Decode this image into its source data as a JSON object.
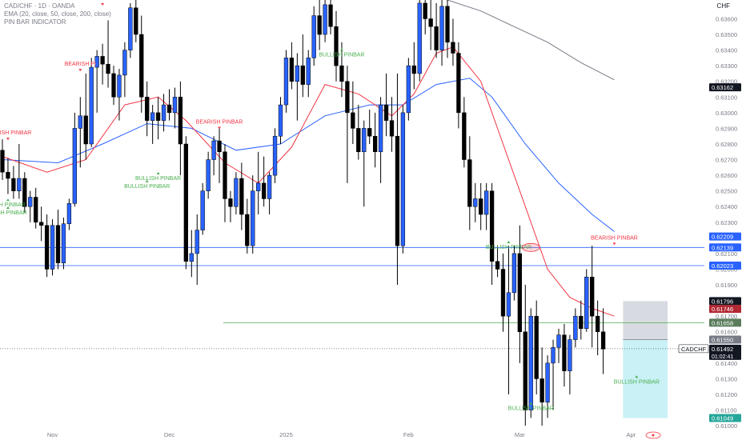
{
  "header": {
    "symbol_line": "CAD/CHF · 1D · OANDA",
    "ema_line": "EMA (20, close, 50, close, 200, close)",
    "indicator_line": "PIN BAR INDICATOR",
    "currency": "CHF"
  },
  "colors": {
    "up_body": "#2962ff",
    "down_body": "#000000",
    "wick": "#000000",
    "ema20": "#f23645",
    "ema50": "#2962ff",
    "ema200": "#787b86",
    "bullish_label": "#4caf50",
    "bearish_label": "#f23645",
    "hline_blue": "#2962ff",
    "hline_green": "#4caf50",
    "target_zone": "#b2ebf2",
    "stop_zone": "#d1d4dc",
    "last_price_bg": "#131722"
  },
  "chart_data": {
    "type": "candlestick",
    "symbol": "CAD/CHF",
    "timeframe": "1D",
    "broker": "OANDA",
    "ylim": [
      0.6097,
      0.6372
    ],
    "y_ticks": [
      "0.63600",
      "0.63500",
      "0.63400",
      "0.63300",
      "0.63200",
      "0.63100",
      "0.63000",
      "0.62900",
      "0.62800",
      "0.62700",
      "0.62600",
      "0.62500",
      "0.62400",
      "0.62300",
      "0.62200",
      "0.62100",
      "0.62000",
      "0.61900",
      "0.61800",
      "0.61700",
      "0.61600",
      "0.61500",
      "0.61400",
      "0.61300",
      "0.61200",
      "0.61100",
      "0.61000"
    ],
    "x_ticks": [
      {
        "label": "Nov",
        "index": 9
      },
      {
        "label": "Dec",
        "index": 30
      },
      {
        "label": "2025",
        "index": 51
      },
      {
        "label": "Feb",
        "index": 73
      },
      {
        "label": "Mar",
        "index": 93
      },
      {
        "label": "Apr",
        "index": 113
      }
    ],
    "candles": [
      [
        0.6276,
        0.6283,
        0.6257,
        0.6262
      ],
      [
        0.6262,
        0.6271,
        0.6248,
        0.6258
      ],
      [
        0.6258,
        0.6266,
        0.6245,
        0.625
      ],
      [
        0.625,
        0.628,
        0.6245,
        0.6258
      ],
      [
        0.6258,
        0.6262,
        0.6236,
        0.624
      ],
      [
        0.624,
        0.625,
        0.623,
        0.6246
      ],
      [
        0.6246,
        0.6252,
        0.6226,
        0.623
      ],
      [
        0.623,
        0.624,
        0.6218,
        0.6228
      ],
      [
        0.6228,
        0.6235,
        0.6195,
        0.62
      ],
      [
        0.62,
        0.6232,
        0.6196,
        0.6228
      ],
      [
        0.6228,
        0.6238,
        0.62,
        0.6204
      ],
      [
        0.6204,
        0.6233,
        0.62,
        0.6229
      ],
      [
        0.6229,
        0.6245,
        0.6225,
        0.6242
      ],
      [
        0.6242,
        0.63,
        0.624,
        0.629
      ],
      [
        0.629,
        0.631,
        0.6265,
        0.6298
      ],
      [
        0.6298,
        0.6325,
        0.627,
        0.628
      ],
      [
        0.628,
        0.6335,
        0.6278,
        0.6329
      ],
      [
        0.6329,
        0.634,
        0.63,
        0.6336
      ],
      [
        0.6336,
        0.6344,
        0.6318,
        0.6331
      ],
      [
        0.6331,
        0.6359,
        0.6316,
        0.6325
      ],
      [
        0.6325,
        0.633,
        0.6305,
        0.631
      ],
      [
        0.631,
        0.6328,
        0.6295,
        0.6324
      ],
      [
        0.6324,
        0.6345,
        0.631,
        0.634
      ],
      [
        0.634,
        0.637,
        0.6335,
        0.6367
      ],
      [
        0.6367,
        0.6375,
        0.6345,
        0.635
      ],
      [
        0.635,
        0.6362,
        0.63,
        0.631
      ],
      [
        0.631,
        0.632,
        0.6285,
        0.6295
      ],
      [
        0.6295,
        0.6305,
        0.628,
        0.63
      ],
      [
        0.63,
        0.631,
        0.6283,
        0.6295
      ],
      [
        0.6295,
        0.6312,
        0.6288,
        0.6305
      ],
      [
        0.6305,
        0.6315,
        0.6295,
        0.63
      ],
      [
        0.63,
        0.6316,
        0.629,
        0.631
      ],
      [
        0.631,
        0.632,
        0.626,
        0.628
      ],
      [
        0.628,
        0.6285,
        0.62,
        0.6205
      ],
      [
        0.6205,
        0.6225,
        0.6195,
        0.621
      ],
      [
        0.621,
        0.6235,
        0.619,
        0.6225
      ],
      [
        0.6225,
        0.6255,
        0.6222,
        0.625
      ],
      [
        0.625,
        0.6275,
        0.6245,
        0.627
      ],
      [
        0.627,
        0.6285,
        0.626,
        0.6282
      ],
      [
        0.6282,
        0.629,
        0.6255,
        0.6275
      ],
      [
        0.6275,
        0.628,
        0.623,
        0.6245
      ],
      [
        0.6245,
        0.625,
        0.623,
        0.624
      ],
      [
        0.624,
        0.6262,
        0.6235,
        0.6258
      ],
      [
        0.6258,
        0.6268,
        0.6225,
        0.6235
      ],
      [
        0.6235,
        0.6245,
        0.621,
        0.6215
      ],
      [
        0.6215,
        0.626,
        0.621,
        0.625
      ],
      [
        0.625,
        0.6275,
        0.6235,
        0.6255
      ],
      [
        0.6255,
        0.6272,
        0.624,
        0.6245
      ],
      [
        0.6245,
        0.6262,
        0.6235,
        0.626
      ],
      [
        0.626,
        0.629,
        0.6255,
        0.6285
      ],
      [
        0.6285,
        0.631,
        0.628,
        0.6305
      ],
      [
        0.6305,
        0.634,
        0.63,
        0.6335
      ],
      [
        0.6335,
        0.6345,
        0.6315,
        0.632
      ],
      [
        0.632,
        0.6338,
        0.6295,
        0.633
      ],
      [
        0.633,
        0.635,
        0.631,
        0.6318
      ],
      [
        0.6318,
        0.634,
        0.631,
        0.6335
      ],
      [
        0.6335,
        0.6368,
        0.633,
        0.6362
      ],
      [
        0.6362,
        0.6375,
        0.634,
        0.635
      ],
      [
        0.635,
        0.6372,
        0.6345,
        0.6369
      ],
      [
        0.6369,
        0.6375,
        0.635,
        0.6355
      ],
      [
        0.6355,
        0.6365,
        0.632,
        0.633
      ],
      [
        0.633,
        0.6345,
        0.631,
        0.632
      ],
      [
        0.632,
        0.633,
        0.6255,
        0.63
      ],
      [
        0.63,
        0.632,
        0.628,
        0.629
      ],
      [
        0.629,
        0.6305,
        0.627,
        0.6275
      ],
      [
        0.6275,
        0.6295,
        0.624,
        0.629
      ],
      [
        0.629,
        0.6302,
        0.628,
        0.6285
      ],
      [
        0.6285,
        0.63,
        0.6265,
        0.6275
      ],
      [
        0.6275,
        0.631,
        0.6255,
        0.6305
      ],
      [
        0.6305,
        0.6325,
        0.6285,
        0.6295
      ],
      [
        0.6295,
        0.631,
        0.6275,
        0.6285
      ],
      [
        0.6285,
        0.6325,
        0.619,
        0.6215
      ],
      [
        0.6215,
        0.6305,
        0.621,
        0.63
      ],
      [
        0.63,
        0.6335,
        0.6295,
        0.633
      ],
      [
        0.633,
        0.6345,
        0.6315,
        0.6325
      ],
      [
        0.6325,
        0.6375,
        0.632,
        0.637
      ],
      [
        0.637,
        0.6378,
        0.635,
        0.636
      ],
      [
        0.636,
        0.6372,
        0.634,
        0.6355
      ],
      [
        0.6355,
        0.637,
        0.6335,
        0.634
      ],
      [
        0.634,
        0.6375,
        0.633,
        0.6368
      ],
      [
        0.6368,
        0.6372,
        0.6335,
        0.6345
      ],
      [
        0.6345,
        0.636,
        0.633,
        0.6338
      ],
      [
        0.6338,
        0.6345,
        0.629,
        0.63
      ],
      [
        0.63,
        0.631,
        0.6265,
        0.627
      ],
      [
        0.627,
        0.6285,
        0.6225,
        0.624
      ],
      [
        0.624,
        0.6255,
        0.623,
        0.6245
      ],
      [
        0.6245,
        0.6255,
        0.6225,
        0.6235
      ],
      [
        0.6235,
        0.6255,
        0.6225,
        0.625
      ],
      [
        0.625,
        0.6255,
        0.619,
        0.6205
      ],
      [
        0.6205,
        0.6215,
        0.6195,
        0.62
      ],
      [
        0.62,
        0.621,
        0.616,
        0.617
      ],
      [
        0.617,
        0.6215,
        0.612,
        0.6185
      ],
      [
        0.6185,
        0.6215,
        0.618,
        0.621
      ],
      [
        0.621,
        0.6228,
        0.614,
        0.616
      ],
      [
        0.616,
        0.619,
        0.61,
        0.611
      ],
      [
        0.611,
        0.6175,
        0.6105,
        0.617
      ],
      [
        0.617,
        0.618,
        0.612,
        0.613
      ],
      [
        0.613,
        0.615,
        0.61,
        0.6115
      ],
      [
        0.6115,
        0.6145,
        0.6105,
        0.614
      ],
      [
        0.614,
        0.6155,
        0.611,
        0.615
      ],
      [
        0.615,
        0.6162,
        0.614,
        0.6158
      ],
      [
        0.6158,
        0.6165,
        0.6125,
        0.6135
      ],
      [
        0.6135,
        0.6158,
        0.612,
        0.6155
      ],
      [
        0.6155,
        0.6175,
        0.615,
        0.617
      ],
      [
        0.617,
        0.618,
        0.6155,
        0.6162
      ],
      [
        0.6162,
        0.62,
        0.616,
        0.6195
      ],
      [
        0.6195,
        0.6215,
        0.615,
        0.617
      ],
      [
        0.617,
        0.618,
        0.6145,
        0.616
      ],
      [
        0.616,
        0.6175,
        0.6133,
        0.6149
      ]
    ],
    "ema20": [
      [
        0,
        0.6272
      ],
      [
        8,
        0.6262
      ],
      [
        15,
        0.627
      ],
      [
        22,
        0.6305
      ],
      [
        28,
        0.631
      ],
      [
        33,
        0.6295
      ],
      [
        40,
        0.6268
      ],
      [
        46,
        0.6255
      ],
      [
        52,
        0.6278
      ],
      [
        58,
        0.6318
      ],
      [
        64,
        0.6312
      ],
      [
        70,
        0.6298
      ],
      [
        74,
        0.6312
      ],
      [
        78,
        0.6338
      ],
      [
        81,
        0.6342
      ],
      [
        86,
        0.632
      ],
      [
        90,
        0.628
      ],
      [
        94,
        0.624
      ],
      [
        98,
        0.62
      ],
      [
        102,
        0.6182
      ],
      [
        106,
        0.6175
      ],
      [
        110,
        0.617
      ]
    ],
    "ema50": [
      [
        0,
        0.627
      ],
      [
        10,
        0.6268
      ],
      [
        18,
        0.628
      ],
      [
        26,
        0.6293
      ],
      [
        34,
        0.629
      ],
      [
        42,
        0.6276
      ],
      [
        50,
        0.628
      ],
      [
        58,
        0.6298
      ],
      [
        66,
        0.6305
      ],
      [
        72,
        0.6305
      ],
      [
        78,
        0.6318
      ],
      [
        84,
        0.6322
      ],
      [
        88,
        0.631
      ],
      [
        94,
        0.628
      ],
      [
        100,
        0.6255
      ],
      [
        106,
        0.6235
      ],
      [
        110,
        0.6224
      ]
    ],
    "ema200": [
      [
        74,
        0.6378
      ],
      [
        80,
        0.6372
      ],
      [
        86,
        0.6365
      ],
      [
        92,
        0.6355
      ],
      [
        98,
        0.6345
      ],
      [
        104,
        0.6332
      ],
      [
        110,
        0.6321
      ]
    ],
    "annotations": [
      {
        "text": "BEARISH PINBAR",
        "index": 18,
        "price": 0.6372,
        "kind": "bearish"
      },
      {
        "text": "BEARISH PI",
        "index": 14,
        "price": 0.633,
        "kind": "bearish"
      },
      {
        "text": "BEARISH PINBAR",
        "index": 1,
        "price": 0.6286,
        "kind": "bearish"
      },
      {
        "text": "BEARISH PINBAR",
        "index": 39,
        "price": 0.6293,
        "kind": "bearish"
      },
      {
        "text": "BEARISH PINBAR",
        "index": 110,
        "price": 0.6219,
        "kind": "bearish"
      },
      {
        "text": "BULLISH PINBAR",
        "index": 28,
        "price": 0.6257,
        "kind": "bullish"
      },
      {
        "text": "BULLISH PINBAR",
        "index": 26,
        "price": 0.6252,
        "kind": "bullish"
      },
      {
        "text": "BULLISH PINBAR",
        "index": 61,
        "price": 0.6336,
        "kind": "bullish"
      },
      {
        "text": "LISH PINBAR",
        "index": 1,
        "price": 0.624,
        "kind": "bullish"
      },
      {
        "text": "LLISH PINBAR",
        "index": 1,
        "price": 0.6235,
        "kind": "bullish"
      },
      {
        "text": "BULLISH PINBAR",
        "index": 91,
        "price": 0.6213,
        "kind": "bullish"
      },
      {
        "text": "BULLISH PINBAR",
        "index": 95,
        "price": 0.611,
        "kind": "bullish"
      },
      {
        "text": "BULLISH PINBAR",
        "index": 114,
        "price": 0.6127,
        "kind": "bullish"
      }
    ],
    "horizontal_lines": [
      {
        "price": 0.62139,
        "color": "blue",
        "label": "0.62139"
      },
      {
        "price": 0.62023,
        "color": "blue",
        "label": "0.62023"
      },
      {
        "price": 0.61658,
        "color": "green",
        "label": "0.61658"
      }
    ],
    "price_labels": [
      {
        "price": 0.62209,
        "text": "0.62209",
        "color": "#2962ff"
      },
      {
        "price": 0.63162,
        "text": "0.63162",
        "color": "#131722"
      },
      {
        "price": 0.61796,
        "text": "0.61796",
        "color": "#131722"
      },
      {
        "price": 0.61746,
        "text": "0.61746",
        "color": "#b22833"
      },
      {
        "price": 0.6155,
        "text": "0.61550",
        "color": "#787b86"
      },
      {
        "price": 0.61049,
        "text": "0.61049",
        "color": "#26a69a"
      }
    ],
    "position": {
      "entry": 0.6155,
      "stop": 0.61796,
      "target": 0.61049,
      "start_index": 112,
      "end_index": 121
    },
    "last_price": {
      "symbol": "CADCHF",
      "price": "0.61492",
      "countdown": "01:02:41"
    }
  }
}
